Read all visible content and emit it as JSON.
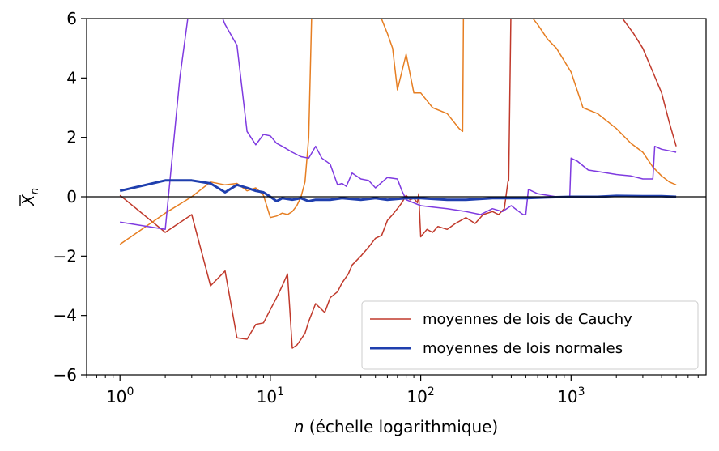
{
  "chart_data": {
    "type": "line",
    "title": "",
    "xlabel_var": "n",
    "xlabel_rest": " (échelle logarithmique)",
    "ylabel_var": "X",
    "ylabel_sub": "n",
    "x_scale": "log",
    "xlim": [
      0.6,
      7900
    ],
    "ylim": [
      -6,
      6
    ],
    "y_ticks": [
      -6,
      -4,
      -2,
      0,
      2,
      4,
      6
    ],
    "y_tick_labels": [
      "−6",
      "−4",
      "−2",
      "0",
      "2",
      "4",
      "6"
    ],
    "x_ticks": [
      1,
      10,
      100,
      1000
    ],
    "x_tick_bases": [
      "10",
      "10",
      "10",
      "10"
    ],
    "x_tick_exps": [
      "0",
      "1",
      "2",
      "3"
    ],
    "reference_line_y": 0,
    "grid": false,
    "legend_position": "bottom-right",
    "legend": [
      {
        "label": "moyennes de lois de Cauchy",
        "color": "#c0392b"
      },
      {
        "label": "moyennes de lois normales",
        "color": "#1f3fae"
      }
    ],
    "series": [
      {
        "group": "cauchy",
        "color": "#c0392b",
        "x": [
          1,
          2,
          3,
          4,
          5,
          6,
          7,
          8,
          9,
          10,
          11,
          12,
          13,
          14,
          15,
          16,
          17,
          18,
          20,
          23,
          25,
          28,
          30,
          33,
          35,
          40,
          45,
          50,
          55,
          60,
          65,
          70,
          75,
          80,
          85,
          90,
          95,
          97,
          100,
          110,
          120,
          130,
          150,
          170,
          200,
          230,
          260,
          300,
          330,
          360,
          380,
          385,
          400,
          420,
          450,
          500,
          600,
          700,
          800,
          1000,
          1200,
          1500,
          1800,
          2200,
          2600,
          3000,
          3500,
          4000,
          4500,
          5000
        ],
        "y": [
          0.05,
          -1.2,
          -0.6,
          -3.0,
          -2.5,
          -4.75,
          -4.8,
          -4.3,
          -4.25,
          -3.8,
          -3.4,
          -3.0,
          -2.6,
          -5.1,
          -5.0,
          -4.8,
          -4.6,
          -4.2,
          -3.6,
          -3.9,
          -3.4,
          -3.2,
          -2.9,
          -2.6,
          -2.3,
          -2.0,
          -1.7,
          -1.4,
          -1.3,
          -0.8,
          -0.6,
          -0.4,
          -0.2,
          0.05,
          -0.1,
          -0.05,
          -0.2,
          0.1,
          -1.35,
          -1.1,
          -1.2,
          -1.0,
          -1.1,
          -0.9,
          -0.7,
          -0.9,
          -0.6,
          -0.5,
          -0.6,
          -0.4,
          0.5,
          0.55,
          7.0,
          6.5,
          6.5,
          6.5,
          6.5,
          6.5,
          6.5,
          6.5,
          6.5,
          6.5,
          6.5,
          6.0,
          5.5,
          5.0,
          4.2,
          3.5,
          2.5,
          1.7
        ]
      },
      {
        "group": "cauchy",
        "color": "#e67e22",
        "x": [
          1,
          2,
          3,
          4,
          5,
          6,
          7,
          8,
          9,
          10,
          11,
          12,
          13,
          14,
          15,
          16,
          17,
          18,
          18.5,
          19,
          20,
          25,
          30,
          40,
          50,
          60,
          65,
          70,
          80,
          90,
          100,
          120,
          150,
          180,
          190,
          193,
          196,
          200,
          220,
          250,
          300,
          400,
          500,
          600,
          700,
          800,
          1000,
          1200,
          1500,
          2000,
          2500,
          3000,
          3500,
          4000,
          4500,
          5000
        ],
        "y": [
          -1.6,
          -0.55,
          0.0,
          0.5,
          0.4,
          0.45,
          0.2,
          0.3,
          0.05,
          -0.7,
          -0.65,
          -0.55,
          -0.6,
          -0.5,
          -0.3,
          0.0,
          0.5,
          2.0,
          4.5,
          7.0,
          7.0,
          7.0,
          7.0,
          7.0,
          6.5,
          5.5,
          5.0,
          3.6,
          4.8,
          3.5,
          3.5,
          3.0,
          2.8,
          2.3,
          2.2,
          7.0,
          7.0,
          7.0,
          7.0,
          7.0,
          7.0,
          6.5,
          6.3,
          5.8,
          5.3,
          5.0,
          4.2,
          3.0,
          2.8,
          2.3,
          1.8,
          1.5,
          1.0,
          0.7,
          0.5,
          0.4
        ]
      },
      {
        "group": "cauchy",
        "color": "#7e3ae0",
        "x": [
          1,
          2,
          2.5,
          3,
          4,
          5,
          6,
          7,
          8,
          9,
          10,
          11,
          12,
          14,
          16,
          18,
          20,
          22,
          25,
          28,
          30,
          32,
          35,
          40,
          45,
          50,
          60,
          70,
          75,
          80,
          100,
          120,
          150,
          200,
          250,
          300,
          350,
          400,
          450,
          480,
          500,
          520,
          600,
          800,
          980,
          1000,
          1100,
          1300,
          1500,
          2000,
          2500,
          3000,
          3500,
          3600,
          4000,
          4500,
          5000
        ],
        "y": [
          -0.85,
          -1.1,
          4.0,
          7.0,
          7.0,
          5.8,
          5.1,
          2.2,
          1.75,
          2.1,
          2.05,
          1.8,
          1.7,
          1.5,
          1.35,
          1.3,
          1.7,
          1.3,
          1.1,
          0.4,
          0.45,
          0.35,
          0.8,
          0.6,
          0.55,
          0.3,
          0.65,
          0.6,
          0.2,
          -0.1,
          -0.3,
          -0.35,
          -0.4,
          -0.5,
          -0.6,
          -0.4,
          -0.5,
          -0.3,
          -0.5,
          -0.6,
          -0.6,
          0.25,
          0.1,
          0.0,
          0.0,
          1.3,
          1.2,
          0.9,
          0.85,
          0.75,
          0.7,
          0.6,
          0.6,
          1.7,
          1.6,
          1.55,
          1.5
        ]
      },
      {
        "group": "normal",
        "color": "#1f3fae",
        "x": [
          1,
          2,
          3,
          4,
          5,
          6,
          7,
          8,
          9,
          10,
          11,
          12,
          14,
          16,
          18,
          20,
          25,
          30,
          40,
          50,
          60,
          80,
          100,
          150,
          200,
          300,
          500,
          700,
          1000,
          1500,
          2000,
          3000,
          4000,
          5000
        ],
        "y": [
          0.2,
          0.55,
          0.55,
          0.45,
          0.15,
          0.4,
          0.3,
          0.2,
          0.15,
          0.0,
          -0.15,
          -0.05,
          -0.1,
          -0.05,
          -0.15,
          -0.1,
          -0.1,
          -0.05,
          -0.1,
          -0.05,
          -0.1,
          -0.05,
          -0.05,
          -0.1,
          -0.1,
          -0.05,
          -0.05,
          -0.02,
          0.0,
          0.0,
          0.03,
          0.02,
          0.02,
          0.0
        ]
      }
    ]
  }
}
